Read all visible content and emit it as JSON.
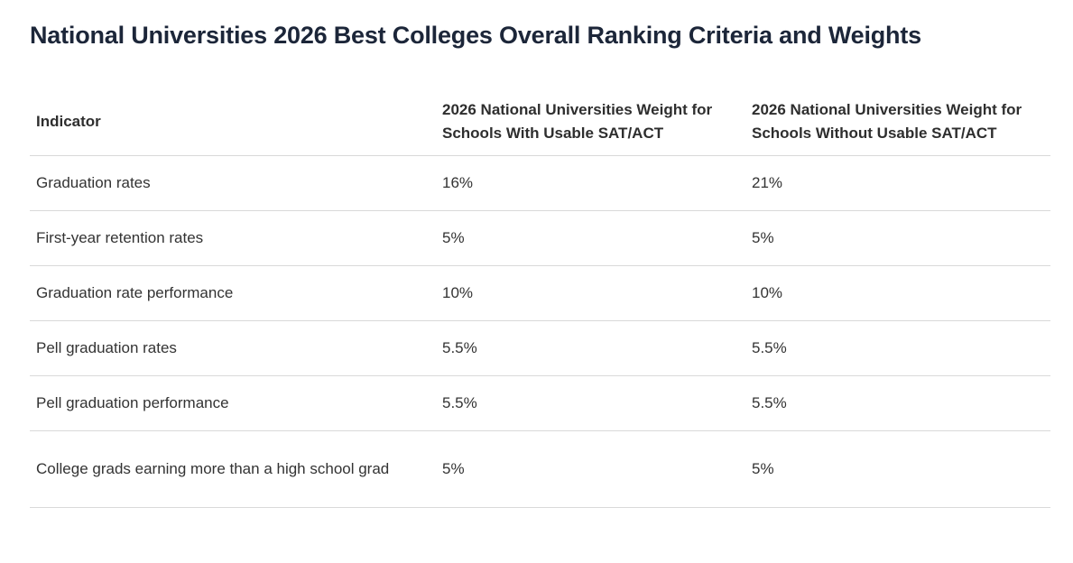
{
  "page": {
    "title": "National Universities 2026 Best Colleges Overall Ranking Criteria and Weights"
  },
  "chart_data": {
    "type": "table",
    "title": "National Universities 2026 Best Colleges Overall Ranking Criteria and Weights",
    "columns": [
      "Indicator",
      "2026 National Universities Weight for Schools With Usable SAT/ACT",
      "2026 National Universities Weight for Schools Without Usable SAT/ACT"
    ],
    "rows": [
      [
        "Graduation rates",
        "16%",
        "21%"
      ],
      [
        "First-year retention rates",
        "5%",
        "5%"
      ],
      [
        "Graduation rate performance",
        "10%",
        "10%"
      ],
      [
        "Pell graduation rates",
        "5.5%",
        "5.5%"
      ],
      [
        "Pell graduation performance",
        "5.5%",
        "5.5%"
      ],
      [
        "College grads earning more than a high school grad",
        "5%",
        "5%"
      ]
    ],
    "layout_hints": {
      "header_row": true,
      "row_dividers": true,
      "divider_color": "#d9d9d9"
    }
  },
  "colors": {
    "background": "#ffffff",
    "heading_text": "#1c2639",
    "header_text": "#2e2e2e",
    "body_text": "#333333",
    "divider": "#d9d9d9"
  }
}
